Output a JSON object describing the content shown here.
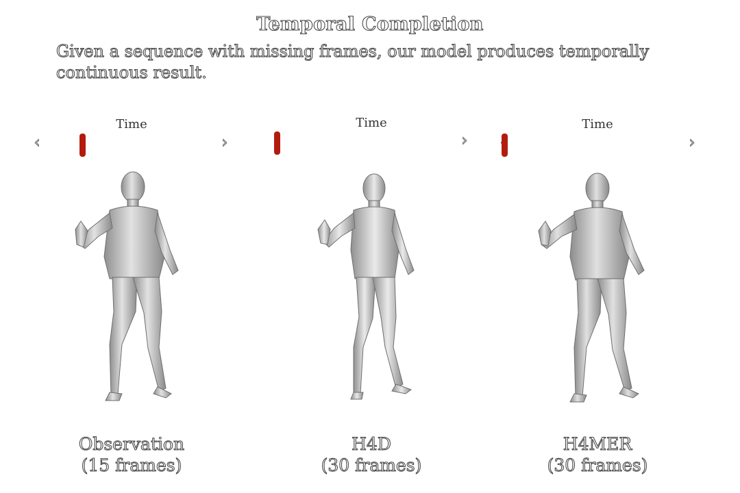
{
  "header": {
    "title": "Temporal Completion",
    "subtitle": "Given a sequence with missing frames, our model produces temporally continuous result."
  },
  "colors": {
    "slider_thumb": "#b31b0f",
    "mesh": "#c8c8c8"
  },
  "panels": [
    {
      "time_label": "Time",
      "caption_line1": "Observation",
      "caption_line2": "(15 frames)",
      "slider_progress": 0.2
    },
    {
      "time_label": "Time",
      "caption_line1": "H4D",
      "caption_line2": "(30 frames)",
      "slider_progress": 0.0
    },
    {
      "time_label": "Time",
      "caption_line1": "H4MER",
      "caption_line2": "(30 frames)",
      "slider_progress": 0.0
    }
  ],
  "icons": {
    "prev": "chevron-left-icon",
    "next": "chevron-right-icon"
  }
}
